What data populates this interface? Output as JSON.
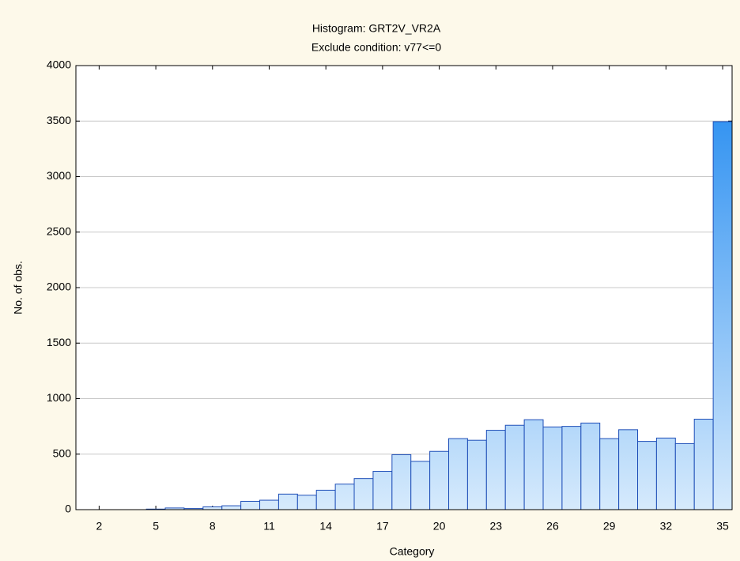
{
  "chart_data": {
    "type": "bar",
    "title": "Histogram: GRT2V_VR2A",
    "subtitle": "Exclude condition: v77<=0",
    "xlabel": "Category",
    "ylabel": "No. of obs.",
    "x": [
      1,
      2,
      3,
      4,
      5,
      6,
      7,
      8,
      9,
      10,
      11,
      12,
      13,
      14,
      15,
      16,
      17,
      18,
      19,
      20,
      21,
      22,
      23,
      24,
      25,
      26,
      27,
      28,
      29,
      30,
      31,
      32,
      33,
      34,
      35
    ],
    "values": [
      0,
      0,
      0,
      0,
      5,
      15,
      10,
      25,
      35,
      75,
      85,
      140,
      130,
      175,
      230,
      280,
      345,
      495,
      435,
      525,
      640,
      625,
      715,
      760,
      810,
      745,
      750,
      780,
      640,
      720,
      615,
      645,
      595,
      815,
      3495
    ],
    "xlim": [
      0.77,
      35.5
    ],
    "xticks": [
      2,
      5,
      8,
      11,
      14,
      17,
      20,
      23,
      26,
      29,
      32,
      35
    ],
    "ylim": [
      0,
      4000
    ],
    "yticks": [
      0,
      500,
      1000,
      1500,
      2000,
      2500,
      3000,
      3500,
      4000
    ],
    "grid": true,
    "color": "#1e88f0",
    "edgecolor": "#1f4fb8"
  }
}
